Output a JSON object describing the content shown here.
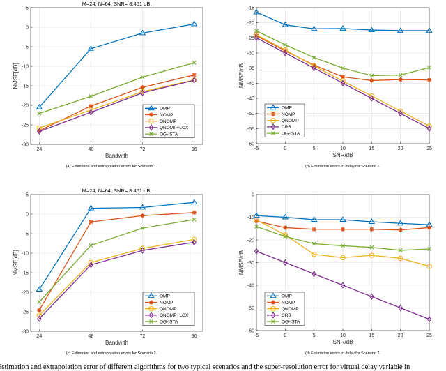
{
  "colors": {
    "OMP": "#0072BD",
    "NOMP": "#D95319",
    "QNOMP": "#EDB120",
    "QNOMP+LOX": "#7E2F8E",
    "CRB": "#7E2F8E",
    "OG-ISTA": "#77AC30"
  },
  "markers": {
    "OMP": "triangle",
    "NOMP": "asterisk",
    "QNOMP": "circle",
    "QNOMP+LOX": "diamond",
    "CRB": "diamond",
    "OG-ISTA": "x"
  },
  "figure_caption": "Estimation and extrapolation error of different algorithms for two typical scenarios and the super-resolution error for virtual delay variable in",
  "chart_data": [
    {
      "type": "line",
      "title": "M=24, N=64, SNR= 8.451 dB,",
      "xlabel": "Bandwith",
      "ylabel": "NMSE[dB]",
      "caption": "(a) Estimation and extrapolation errors for Scenario 1.",
      "x": [
        24,
        48,
        72,
        96
      ],
      "xticks": [
        24,
        48,
        72,
        96
      ],
      "xlim": [
        20,
        100
      ],
      "ylim": [
        -30,
        5
      ],
      "yticks": [
        -30,
        -25,
        -20,
        -15,
        -10,
        -5,
        0,
        5
      ],
      "grid": true,
      "legend": "bottom-right",
      "series": [
        {
          "name": "OMP",
          "values": [
            -20.5,
            -5.5,
            -1.5,
            0.8
          ]
        },
        {
          "name": "NOMP",
          "values": [
            -26.5,
            -20.2,
            -15.4,
            -12.2
          ]
        },
        {
          "name": "QNOMP",
          "values": [
            -25.8,
            -21.2,
            -16.5,
            -13.5
          ]
        },
        {
          "name": "QNOMP+LOX",
          "values": [
            -26.7,
            -21.8,
            -16.8,
            -13.6
          ]
        },
        {
          "name": "OG-ISTA",
          "values": [
            -22.1,
            -17.7,
            -12.8,
            -9.1
          ]
        }
      ]
    },
    {
      "type": "line",
      "title": "",
      "xlabel": "SNR/dB",
      "ylabel": "NMSE/dB",
      "caption": "(b) Estimation errors of delay for Scenario 1.",
      "x": [
        -5,
        0,
        5,
        10,
        15,
        20,
        25
      ],
      "xticks": [
        -5,
        0,
        5,
        10,
        15,
        20,
        25
      ],
      "xlim": [
        -5,
        25
      ],
      "ylim": [
        -60,
        -15
      ],
      "yticks": [
        -60,
        -55,
        -50,
        -45,
        -40,
        -35,
        -30,
        -25,
        -20,
        -15
      ],
      "grid": true,
      "legend": "bottom-left",
      "series": [
        {
          "name": "OMP",
          "values": [
            -16.5,
            -20.7,
            -22,
            -21.9,
            -22.4,
            -22.6,
            -22.6
          ]
        },
        {
          "name": "NOMP",
          "values": [
            -24.3,
            -29.3,
            -34,
            -37.9,
            -39.1,
            -38.8,
            -38.9
          ]
        },
        {
          "name": "QNOMP",
          "values": [
            -24,
            -29,
            -34.3,
            -39.3,
            -44.2,
            -49.2,
            -54.2
          ]
        },
        {
          "name": "CRB",
          "values": [
            -25,
            -30,
            -35,
            -40,
            -45,
            -50,
            -55
          ]
        },
        {
          "name": "OG-ISTA",
          "values": [
            -22.7,
            -27.3,
            -31.5,
            -35,
            -37.5,
            -37.3,
            -34.8
          ]
        }
      ]
    },
    {
      "type": "line",
      "title": "M=24, N=64, SNR= 8.451 dB,",
      "xlabel": "Bandwith",
      "ylabel": "NMSE[dB]",
      "caption": "(c) Estimation and extrapolation errors for Scenario 2.",
      "x": [
        24,
        48,
        72,
        96
      ],
      "xticks": [
        24,
        48,
        72,
        96
      ],
      "xlim": [
        20,
        100
      ],
      "ylim": [
        -30,
        5
      ],
      "yticks": [
        -30,
        -25,
        -20,
        -15,
        -10,
        -5,
        0,
        5
      ],
      "grid": true,
      "legend": "bottom-right",
      "series": [
        {
          "name": "OMP",
          "values": [
            -19.3,
            1.5,
            1.7,
            3
          ]
        },
        {
          "name": "NOMP",
          "values": [
            -24.6,
            -2,
            -0.4,
            0.4
          ]
        },
        {
          "name": "QNOMP",
          "values": [
            -25.9,
            -12.4,
            -8.8,
            -6.5
          ]
        },
        {
          "name": "QNOMP+LOX",
          "values": [
            -26.8,
            -13,
            -9.3,
            -7.2
          ]
        },
        {
          "name": "OG-ISTA",
          "values": [
            -22.5,
            -8,
            -3.6,
            -1.4
          ]
        }
      ]
    },
    {
      "type": "line",
      "title": "",
      "xlabel": "SNR/dB",
      "ylabel": "NMSE/dB",
      "caption": "(d) Estimation errors of delay for Scenario 2.",
      "x": [
        -5,
        0,
        5,
        10,
        15,
        20,
        25
      ],
      "xticks": [
        -5,
        0,
        5,
        10,
        15,
        20,
        25
      ],
      "xlim": [
        -5,
        25
      ],
      "ylim": [
        -60,
        0
      ],
      "yticks": [
        -60,
        -50,
        -40,
        -30,
        -20,
        -10,
        0
      ],
      "grid": true,
      "legend": "bottom-left",
      "series": [
        {
          "name": "OMP",
          "values": [
            -9.3,
            -10,
            -11.1,
            -11.1,
            -12,
            -12.7,
            -13.3
          ]
        },
        {
          "name": "NOMP",
          "values": [
            -11.7,
            -14.6,
            -15.3,
            -15.3,
            -15.3,
            -15.6,
            -14.6
          ]
        },
        {
          "name": "QNOMP",
          "values": [
            -11.2,
            -17.8,
            -26.4,
            -27.8,
            -26.8,
            -28.1,
            -31.7
          ]
        },
        {
          "name": "CRB",
          "values": [
            -25,
            -30,
            -35,
            -40,
            -45,
            -50,
            -55
          ]
        },
        {
          "name": "OG-ISTA",
          "values": [
            -14.1,
            -18.5,
            -21.7,
            -22.6,
            -23.3,
            -24.6,
            -24
          ]
        }
      ]
    }
  ]
}
